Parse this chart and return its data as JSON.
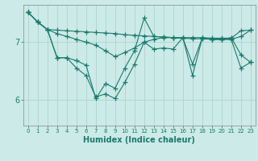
{
  "xlabel": "Humidex (Indice chaleur)",
  "bg_color": "#cceae7",
  "grid_color": "#aed4d0",
  "line_color": "#1a7a6e",
  "x_ticks": [
    0,
    1,
    2,
    3,
    4,
    5,
    6,
    7,
    8,
    9,
    10,
    11,
    12,
    13,
    14,
    15,
    16,
    17,
    18,
    19,
    20,
    21,
    22,
    23
  ],
  "ylim": [
    5.55,
    7.65
  ],
  "yticks": [
    6.0,
    7.0
  ],
  "lines": [
    [
      7.52,
      7.35,
      7.22,
      7.21,
      7.2,
      7.19,
      7.18,
      7.17,
      7.16,
      7.15,
      7.13,
      7.12,
      7.11,
      7.1,
      7.09,
      7.08,
      7.07,
      7.06,
      7.06,
      7.05,
      7.05,
      7.05,
      7.1,
      7.21
    ],
    [
      7.52,
      7.35,
      7.22,
      7.15,
      7.1,
      7.05,
      7.0,
      6.95,
      6.85,
      6.75,
      6.82,
      6.9,
      7.0,
      7.05,
      7.08,
      7.08,
      7.08,
      7.08,
      7.08,
      7.07,
      7.07,
      7.07,
      7.2,
      7.21
    ],
    [
      7.52,
      7.35,
      7.22,
      6.73,
      6.73,
      6.68,
      6.6,
      6.02,
      6.28,
      6.2,
      6.55,
      6.85,
      7.42,
      7.1,
      7.09,
      7.08,
      7.07,
      6.62,
      7.07,
      7.05,
      7.05,
      7.08,
      6.78,
      6.65
    ],
    [
      7.52,
      7.35,
      7.22,
      6.73,
      6.73,
      6.55,
      6.42,
      6.05,
      6.1,
      6.02,
      6.3,
      6.62,
      7.0,
      6.88,
      6.9,
      6.88,
      7.08,
      6.42,
      7.07,
      7.05,
      7.05,
      7.05,
      6.55,
      6.65
    ]
  ],
  "marker": "+",
  "markersize": 4,
  "linewidth": 0.8
}
